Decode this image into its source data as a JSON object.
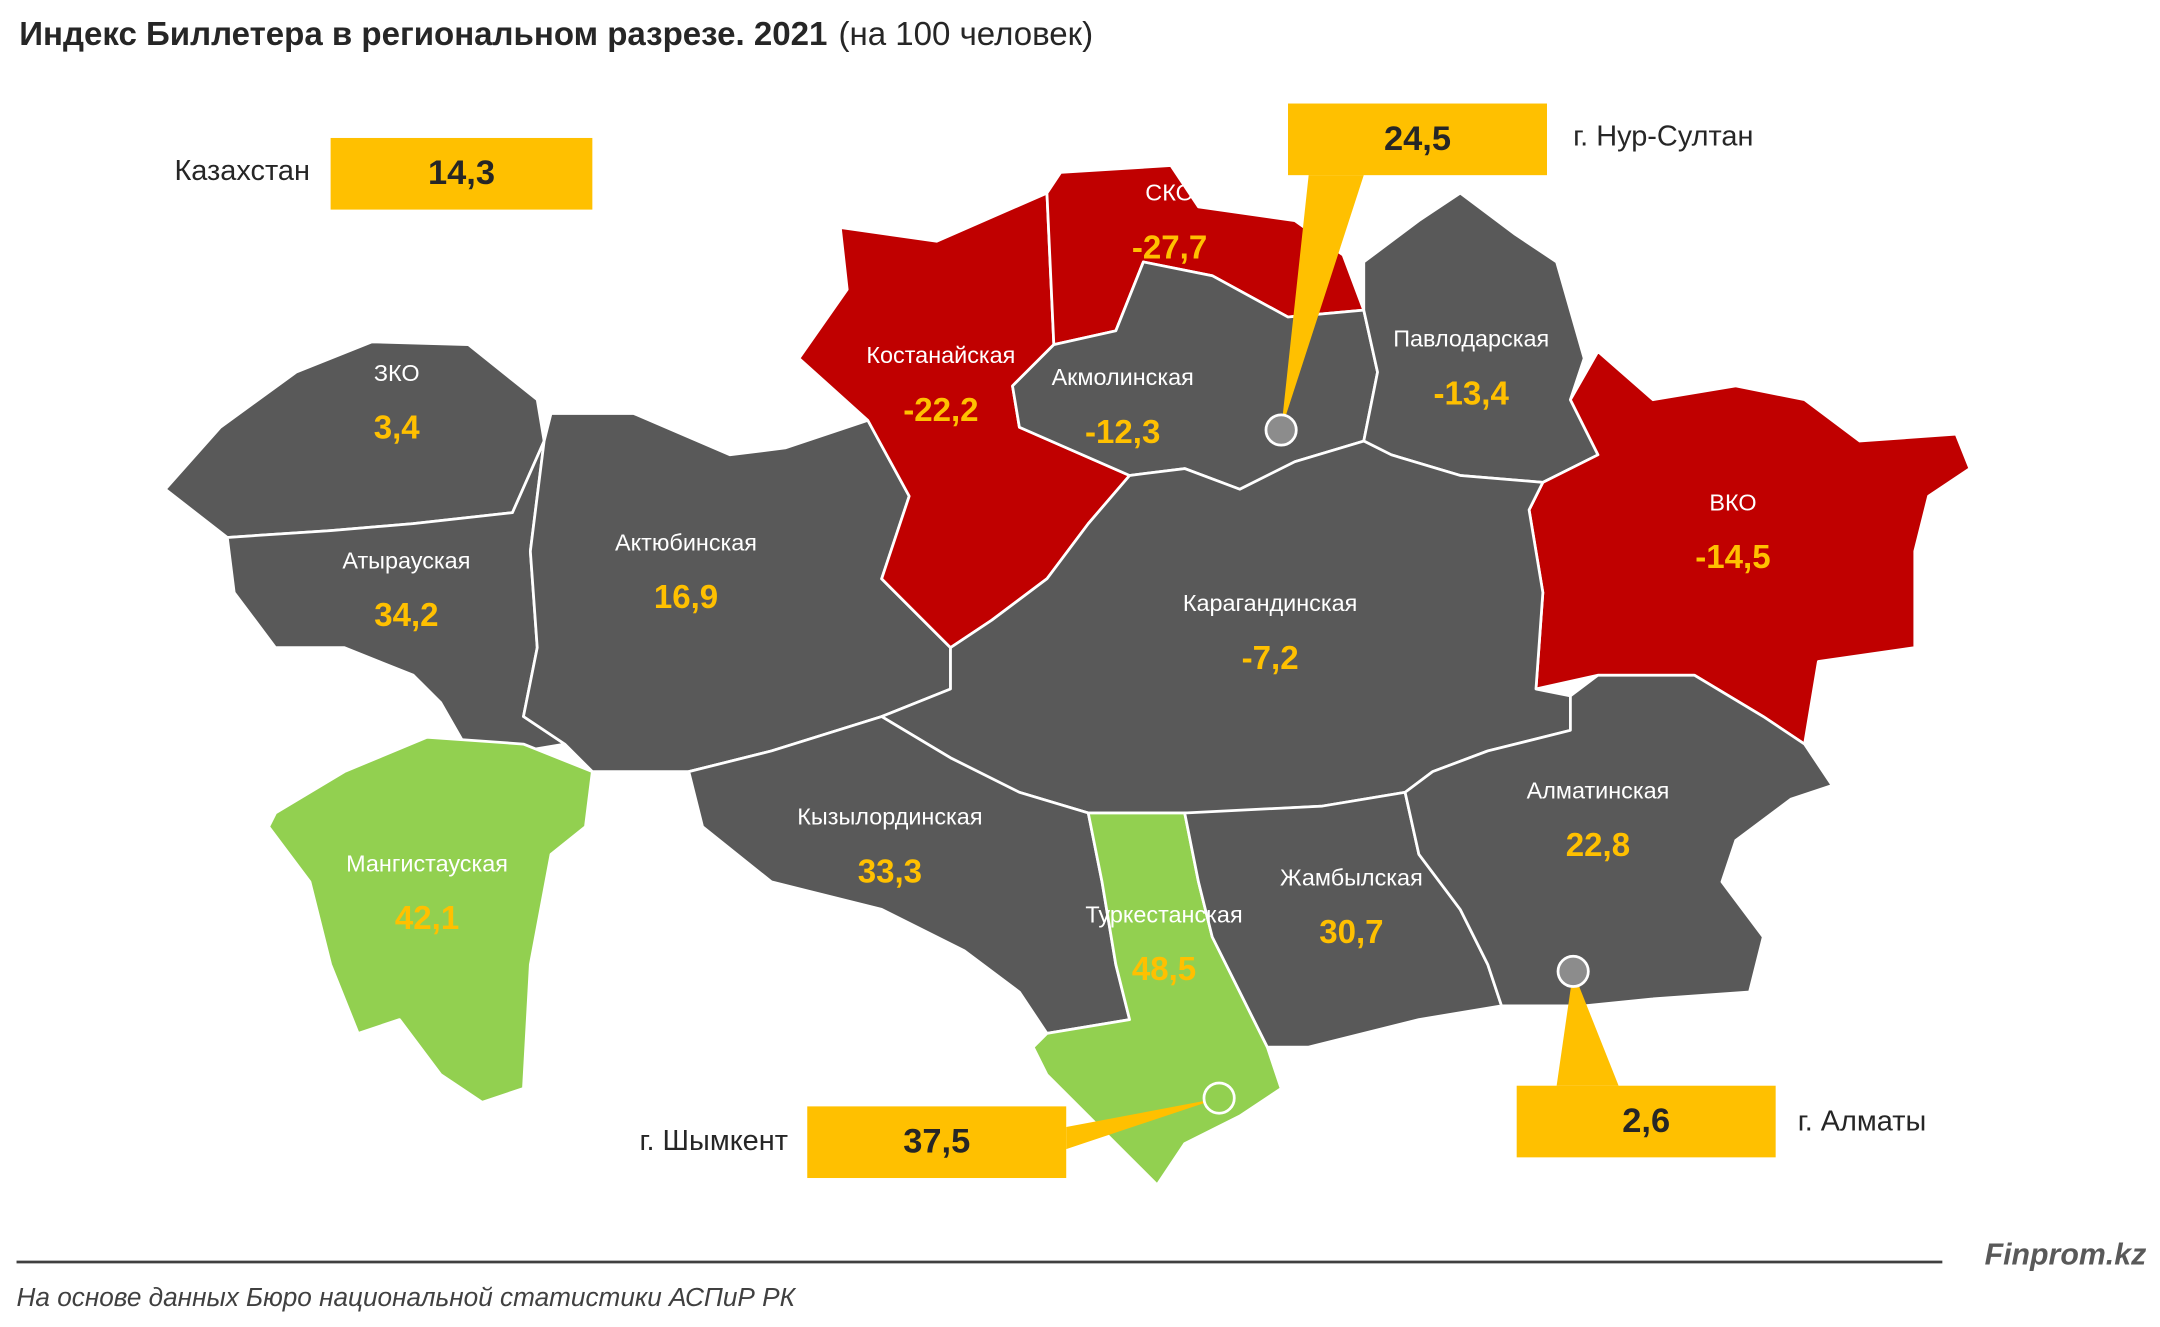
{
  "title": "Индекс Биллетера в региональном разрезе. 2021",
  "subtitle": "(на 100 человек)",
  "country": {
    "name": "Казахстан",
    "value": "14,3"
  },
  "cities": [
    {
      "name": "г. Нур-Султан",
      "value": "24,5"
    },
    {
      "name": "г. Шымкент",
      "value": "37,5"
    },
    {
      "name": "г. Алматы",
      "value": "2,6"
    }
  ],
  "regions": [
    {
      "name": "ЗКО",
      "value": "3,4",
      "color": "#595959"
    },
    {
      "name": "Атырауская",
      "value": "34,2",
      "color": "#595959"
    },
    {
      "name": "Актюбинская",
      "value": "16,9",
      "color": "#595959"
    },
    {
      "name": "Мангистауская",
      "value": "42,1",
      "color": "#92d050"
    },
    {
      "name": "Костанайская",
      "value": "-22,2",
      "color": "#c00000"
    },
    {
      "name": "СКО",
      "value": "-27,7",
      "color": "#c00000"
    },
    {
      "name": "Акмолинская",
      "value": "-12,3",
      "color": "#595959"
    },
    {
      "name": "Павлодарская",
      "value": "-13,4",
      "color": "#595959"
    },
    {
      "name": "ВКО",
      "value": "-14,5",
      "color": "#c00000"
    },
    {
      "name": "Карагандинская",
      "value": "-7,2",
      "color": "#595959"
    },
    {
      "name": "Кызылординская",
      "value": "33,3",
      "color": "#595959"
    },
    {
      "name": "Туркестанская",
      "value": "48,5",
      "color": "#92d050"
    },
    {
      "name": "Жамбылская",
      "value": "30,7",
      "color": "#595959"
    },
    {
      "name": "Алматинская",
      "value": "22,8",
      "color": "#595959"
    }
  ],
  "brand": "Finprom.kz",
  "source": "На основе данных Бюро национальной статистики АСПиР РК"
}
